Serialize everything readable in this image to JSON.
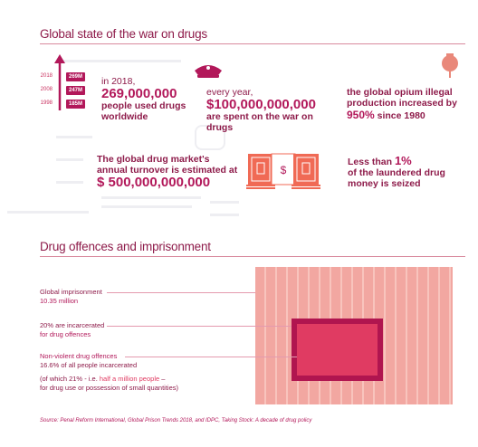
{
  "section1": {
    "title": "Global state of the war on drugs",
    "years_chart": [
      {
        "year": "2018",
        "value": "269M"
      },
      {
        "year": "2008",
        "value": "247M"
      },
      {
        "year": "1998",
        "value": "185M"
      }
    ],
    "stat_users": {
      "intro": "in 2018,",
      "value": "269,000,000",
      "tail1": "people used drugs",
      "tail2": "worldwide"
    },
    "stat_spent": {
      "intro": "every year,",
      "value": "$100,000,000,000",
      "tail": "are spent on the war on drugs"
    },
    "stat_opium": {
      "line1": "the global opium illegal",
      "line2": "production increased by",
      "value": "950%",
      "tail": " since 1980"
    },
    "stat_market": {
      "line1": "The global drug market's",
      "line2": "annual turnover is estimated at",
      "value": "$ 500,000,000,000"
    },
    "stat_seized": {
      "pre": "Less than ",
      "value": "1%",
      "line2": "of the laundered drug",
      "line3": "money is seized"
    }
  },
  "section2": {
    "title": "Drug offences and imprisonment",
    "global_label": "Global imprisonment",
    "global_value": "10.35 million",
    "incarc_line1": "20% are incarcerated",
    "incarc_line2": "for drug offences",
    "nonviolent_line1": "Non-violent drug offences",
    "nonviolent_line2": "16.6% of all people incarcerated",
    "note_line1a": "(of which 21% - i.e. ",
    "note_highlight": "half a million people",
    "note_line1b": " –",
    "note_line2": "for drug use or possession of small quantities)"
  },
  "source": "Source: Penal Reform International, Global Prison Trends 2018, and IDPC, Taking Stock: A decade of drug policy",
  "colors": {
    "primary": "#8e1b4a",
    "accent": "#b2185a",
    "pink": "#e03b62",
    "grid": "#f2a7a1"
  }
}
